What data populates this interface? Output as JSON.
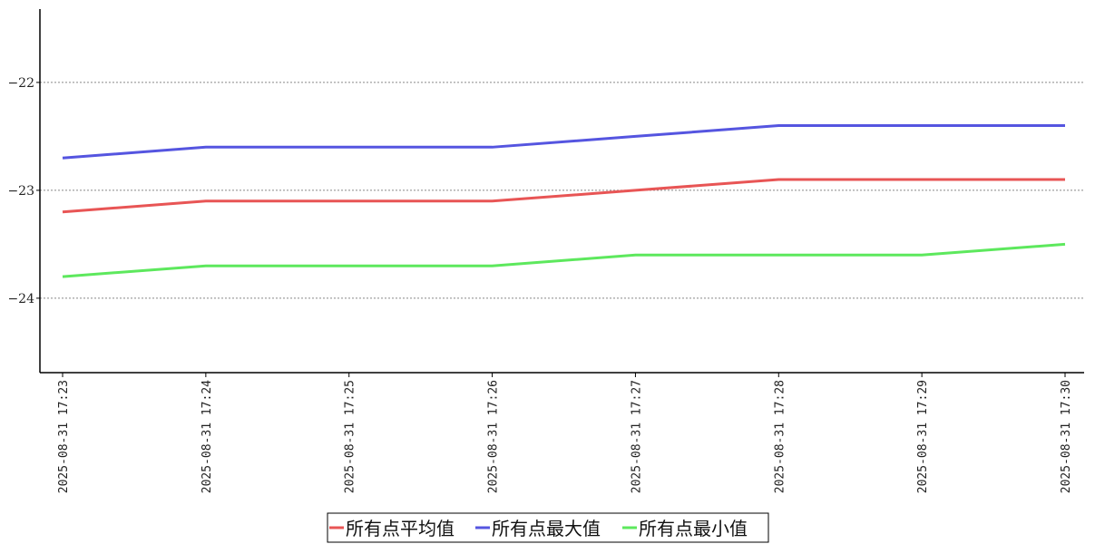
{
  "chart_data": {
    "type": "line",
    "title": "",
    "xlabel": "",
    "ylabel": "",
    "x": [
      "2025-08-31 17:23",
      "2025-08-31 17:24",
      "2025-08-31 17:25",
      "2025-08-31 17:26",
      "2025-08-31 17:27",
      "2025-08-31 17:28",
      "2025-08-31 17:29",
      "2025-08-31 17:30"
    ],
    "ylim": [
      -24.69,
      -21.32
    ],
    "yticks": [
      -22,
      -23,
      -24
    ],
    "ytick_labels": [
      "−22",
      "−23",
      "−24"
    ],
    "grid": "horizontal dotted",
    "legend_placement": "bottom-center",
    "series": [
      {
        "name": "所有点平均值",
        "color": "#e85555",
        "values": [
          -23.2,
          -23.1,
          -23.1,
          -23.1,
          -23.0,
          -22.9,
          -22.9,
          -22.9
        ]
      },
      {
        "name": "所有点最大值",
        "color": "#5555e0",
        "values": [
          -22.7,
          -22.6,
          -22.6,
          -22.6,
          -22.5,
          -22.4,
          -22.4,
          -22.4
        ]
      },
      {
        "name": "所有点最小值",
        "color": "#5de85d",
        "values": [
          -23.8,
          -23.7,
          -23.7,
          -23.7,
          -23.6,
          -23.6,
          -23.6,
          -23.5
        ]
      }
    ]
  }
}
